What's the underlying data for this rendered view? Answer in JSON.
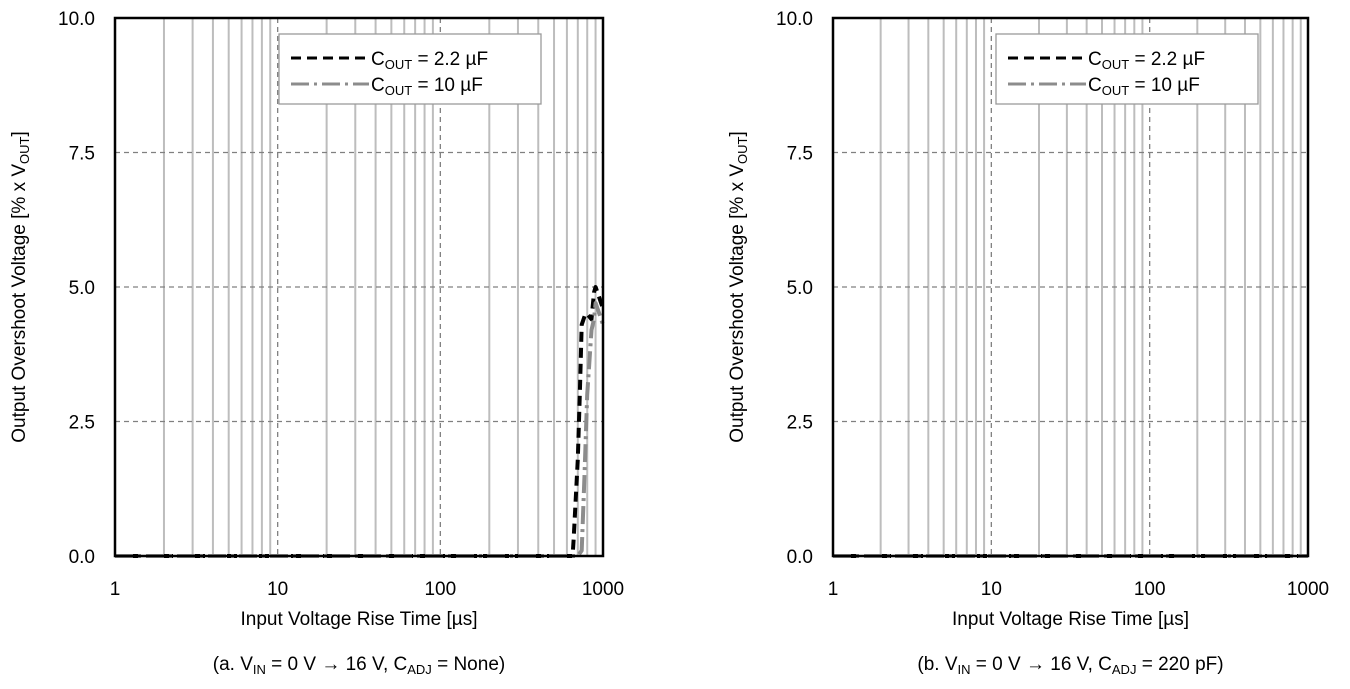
{
  "chart_data": [
    {
      "type": "line",
      "caption_parts": [
        "(a. V",
        "IN",
        " = 0 V → 16 V,   C",
        "ADJ",
        " = None)"
      ],
      "xlabel": "Input Voltage Rise Time [µs]",
      "ylabel_parts": [
        "Output Overshoot Voltage [% x V",
        "OUT",
        "]"
      ],
      "x_scale": "log",
      "xlim": [
        1,
        1000
      ],
      "ylim": [
        0,
        10
      ],
      "x_ticks": [
        "1",
        "10",
        "100",
        "1000"
      ],
      "y_ticks": [
        "0.0",
        "2.5",
        "5.0",
        "7.5",
        "10.0"
      ],
      "grid": true,
      "legend_position": "top-right",
      "series": [
        {
          "name_parts": [
            "C",
            "OUT",
            " =  2.2  µF"
          ],
          "color": "#000000",
          "style": "dashed",
          "x": [
            1,
            10,
            100,
            500,
            650,
            660,
            700,
            720,
            740,
            780,
            800,
            850,
            880,
            900,
            1000
          ],
          "y": [
            0,
            0,
            0,
            0,
            0,
            0.3,
            1.8,
            3.0,
            4.3,
            4.5,
            4.5,
            4.4,
            4.9,
            5.0,
            4.6
          ]
        },
        {
          "name_parts": [
            "C",
            "OUT",
            " = 10 µF"
          ],
          "color": "#8c8c8c",
          "style": "dashdot",
          "x": [
            1,
            10,
            100,
            500,
            700,
            740,
            770,
            800,
            850,
            880,
            900,
            950,
            1000
          ],
          "y": [
            0,
            0,
            0,
            0,
            0,
            0.1,
            1.5,
            3.0,
            4.2,
            4.4,
            4.7,
            4.5,
            4.3
          ]
        }
      ]
    },
    {
      "type": "line",
      "caption_parts": [
        "(b. V",
        "IN",
        " = 0 V → 16 V,   C",
        "ADJ",
        " = 220 pF)"
      ],
      "xlabel": "Input Voltage Rise Time [µs]",
      "ylabel_parts": [
        "Output Overshoot Voltage [% x V",
        "OUT",
        "]"
      ],
      "x_scale": "log",
      "xlim": [
        1,
        1000
      ],
      "ylim": [
        0,
        10
      ],
      "x_ticks": [
        "1",
        "10",
        "100",
        "1000"
      ],
      "y_ticks": [
        "0.0",
        "2.5",
        "5.0",
        "7.5",
        "10.0"
      ],
      "grid": true,
      "legend_position": "top-right",
      "series": [
        {
          "name_parts": [
            "C",
            "OUT",
            " =  2.2  µF"
          ],
          "color": "#000000",
          "style": "dashed",
          "x": [
            1,
            10,
            100,
            1000
          ],
          "y": [
            0,
            0,
            0,
            0
          ]
        },
        {
          "name_parts": [
            "C",
            "OUT",
            " = 10 µF"
          ],
          "color": "#8c8c8c",
          "style": "dashdot",
          "x": [
            1,
            10,
            100,
            1000
          ],
          "y": [
            0,
            0,
            0,
            0
          ]
        }
      ]
    }
  ]
}
